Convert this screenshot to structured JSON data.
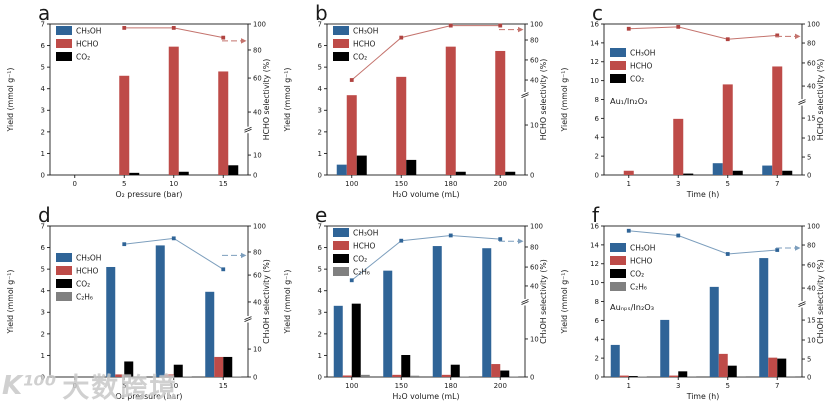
{
  "figure": {
    "watermark": {
      "logo": "K¹⁰⁰",
      "text": "大数跨境"
    }
  },
  "colors": {
    "blue": "#2F6497",
    "red": "#BE4B48",
    "black": "#000000",
    "gray": "#808080",
    "line_red": "#C4736D",
    "line_red_marker": "#B04340",
    "line_blue": "#7C9EBD",
    "line_blue_marker": "#2F6497",
    "axis": "#1a1a1a"
  },
  "chart_data": [
    {
      "id": "a",
      "letter": "a",
      "type": "bar",
      "xlabel": "O₂ pressure (bar)",
      "ylabel_left": "Yield (mmol g⁻¹)",
      "ylabel_right": "HCHO selectivity (%)",
      "categories": [
        "0",
        "5",
        "10",
        "15"
      ],
      "left_axis": {
        "max": 7,
        "ticks": [
          0,
          1,
          2,
          3,
          4,
          5,
          6,
          7
        ]
      },
      "right_axis": {
        "break_f": 0.3,
        "ticks": [
          {
            "v": 0,
            "f": 0
          },
          {
            "v": 10,
            "f": 0.132
          },
          {
            "v": 40,
            "f": 0.417
          },
          {
            "v": 60,
            "f": 0.642
          },
          {
            "v": 80,
            "f": 0.828
          },
          {
            "v": 100,
            "f": 1
          }
        ]
      },
      "series": [
        {
          "name": "CH₃OH",
          "color": "blue",
          "values": [
            0,
            0,
            0,
            0
          ]
        },
        {
          "name": "HCHO",
          "color": "red",
          "values": [
            0,
            4.6,
            5.95,
            4.8
          ]
        },
        {
          "name": "CO₂",
          "color": "black",
          "values": [
            0,
            0.1,
            0.15,
            0.45
          ]
        }
      ],
      "line": {
        "name": "HCHO selectivity",
        "color": "red",
        "values": [
          null,
          97,
          97,
          89.5
        ],
        "arrow_value": 87
      },
      "legend_dy": 2,
      "annotation": null,
      "ann_y": 0
    },
    {
      "id": "b",
      "letter": "b",
      "type": "bar",
      "xlabel": "H₂O volume (mL)",
      "ylabel_left": "Yield (mmol g⁻¹)",
      "ylabel_right": "HCHO selectivity (%)",
      "categories": [
        "100",
        "150",
        "180",
        "200"
      ],
      "left_axis": {
        "max": 7,
        "ticks": [
          0,
          1,
          2,
          3,
          4,
          5,
          6,
          7
        ]
      },
      "right_axis": {
        "break_f": 0.53,
        "ticks": [
          {
            "v": 0,
            "f": 0
          },
          {
            "v": 10,
            "f": 0.331
          },
          {
            "v": 40,
            "f": 0.629
          },
          {
            "v": 60,
            "f": 0.762
          },
          {
            "v": 80,
            "f": 0.894
          },
          {
            "v": 100,
            "f": 1
          }
        ]
      },
      "series": [
        {
          "name": "CH₃OH",
          "color": "blue",
          "values": [
            0.48,
            0,
            0,
            0
          ]
        },
        {
          "name": "HCHO",
          "color": "red",
          "values": [
            3.7,
            4.55,
            5.95,
            5.75
          ]
        },
        {
          "name": "CO₂",
          "color": "black",
          "values": [
            0.9,
            0.7,
            0.15,
            0.15
          ]
        }
      ],
      "line": {
        "name": "HCHO selectivity",
        "color": "red",
        "values": [
          40,
          83,
          98,
          98
        ],
        "arrow_value": 93
      },
      "legend_dy": 2,
      "annotation": null,
      "ann_y": 0
    },
    {
      "id": "c",
      "letter": "c",
      "type": "bar",
      "xlabel": "Time (h)",
      "ylabel_left": "Yield (mmol g⁻¹)",
      "ylabel_right": "HCHO selectivity (%)",
      "categories": [
        "1",
        "3",
        "5",
        "7"
      ],
      "left_axis": {
        "max": 16,
        "ticks": [
          0,
          2,
          4,
          6,
          8,
          10,
          12,
          14,
          16
        ]
      },
      "right_axis": {
        "break_f": 0.483,
        "ticks": [
          {
            "v": 0,
            "f": 0
          },
          {
            "v": 5,
            "f": 0.119
          },
          {
            "v": 10,
            "f": 0.245
          },
          {
            "v": 15,
            "f": 0.377
          },
          {
            "v": 40,
            "f": 0.589
          },
          {
            "v": 60,
            "f": 0.742
          },
          {
            "v": 80,
            "f": 0.874
          },
          {
            "v": 100,
            "f": 1
          }
        ]
      },
      "series": [
        {
          "name": "CH₃OH",
          "color": "blue",
          "values": [
            0,
            0,
            1.25,
            1.0
          ]
        },
        {
          "name": "HCHO",
          "color": "red",
          "values": [
            0.45,
            5.95,
            9.6,
            11.5
          ]
        },
        {
          "name": "CO₂",
          "color": "black",
          "values": [
            0,
            0.15,
            0.45,
            0.45
          ]
        }
      ],
      "line": {
        "name": "HCHO selectivity",
        "color": "red",
        "values": [
          95,
          97,
          84,
          88
        ],
        "arrow_value": 87
      },
      "legend_dy": 24,
      "annotation": "Au₁/In₂O₃",
      "ann_y": 104
    },
    {
      "id": "d",
      "letter": "d",
      "type": "bar",
      "xlabel": "O₂ pressure (bar)",
      "ylabel_left": "Yield (mmol g⁻¹)",
      "ylabel_right": "CH₃OH selectivity (%)",
      "categories": [
        "0",
        "5",
        "10",
        "15"
      ],
      "left_axis": {
        "max": 7,
        "ticks": [
          0,
          1,
          2,
          3,
          4,
          5,
          6,
          7
        ]
      },
      "right_axis": {
        "break_f": 0.384,
        "ticks": [
          {
            "v": 0,
            "f": 0
          },
          {
            "v": 10,
            "f": 0.185
          },
          {
            "v": 40,
            "f": 0.497
          },
          {
            "v": 60,
            "f": 0.675
          },
          {
            "v": 80,
            "f": 0.828
          },
          {
            "v": 100,
            "f": 1
          }
        ]
      },
      "series": [
        {
          "name": "CH₃OH",
          "color": "blue",
          "values": [
            0,
            5.1,
            6.1,
            3.95
          ]
        },
        {
          "name": "HCHO",
          "color": "red",
          "values": [
            0,
            0.12,
            0.12,
            0.93
          ]
        },
        {
          "name": "CO₂",
          "color": "black",
          "values": [
            0,
            0.72,
            0.57,
            0.93
          ]
        },
        {
          "name": "C₂H₆",
          "color": "gray",
          "values": [
            0,
            0.03,
            0.02,
            0.02
          ]
        }
      ],
      "line": {
        "name": "CH₃OH selectivity",
        "color": "blue",
        "values": [
          null,
          86,
          90.5,
          65
        ],
        "arrow_value": 77
      },
      "legend_dy": 27,
      "annotation": null,
      "ann_y": 0
    },
    {
      "id": "e",
      "letter": "e",
      "type": "bar",
      "xlabel": "H₂O volume (mL)",
      "ylabel_left": "Yield (mmol g⁻¹)",
      "ylabel_right": "CH₃OH selectivity (%)",
      "categories": [
        "100",
        "150",
        "180",
        "200"
      ],
      "left_axis": {
        "max": 7,
        "ticks": [
          0,
          1,
          2,
          3,
          4,
          5,
          6,
          7
        ]
      },
      "right_axis": {
        "break_f": 0.497,
        "ticks": [
          {
            "v": 0,
            "f": 0
          },
          {
            "v": 10,
            "f": 0.252
          },
          {
            "v": 40,
            "f": 0.603
          },
          {
            "v": 60,
            "f": 0.728
          },
          {
            "v": 80,
            "f": 0.861
          },
          {
            "v": 100,
            "f": 1
          }
        ]
      },
      "series": [
        {
          "name": "CH₃OH",
          "color": "blue",
          "values": [
            3.3,
            4.93,
            6.07,
            5.97
          ]
        },
        {
          "name": "HCHO",
          "color": "red",
          "values": [
            0.07,
            0.1,
            0.1,
            0.6
          ]
        },
        {
          "name": "CO₂",
          "color": "black",
          "values": [
            3.4,
            1.02,
            0.57,
            0.3
          ]
        },
        {
          "name": "C₂H₆",
          "color": "gray",
          "values": [
            0.1,
            0.06,
            0.02,
            0.02
          ]
        }
      ],
      "line": {
        "name": "CH₃OH selectivity",
        "color": "blue",
        "values": [
          46,
          86,
          91,
          87.5
        ],
        "arrow_value": 85.5
      },
      "legend_dy": 2,
      "annotation": null,
      "ann_y": 0
    },
    {
      "id": "f",
      "letter": "f",
      "type": "bar",
      "xlabel": "Time (h)",
      "ylabel_left": "Yield (mmol g⁻¹)",
      "ylabel_right": "CH₃OH selectivity (%)",
      "categories": [
        "1",
        "3",
        "5",
        "7"
      ],
      "left_axis": {
        "max": 16,
        "ticks": [
          0,
          2,
          4,
          6,
          8,
          10,
          12,
          14,
          16
        ]
      },
      "right_axis": {
        "break_f": 0.483,
        "ticks": [
          {
            "v": 0,
            "f": 0
          },
          {
            "v": 5,
            "f": 0.119
          },
          {
            "v": 10,
            "f": 0.245
          },
          {
            "v": 15,
            "f": 0.377
          },
          {
            "v": 40,
            "f": 0.589
          },
          {
            "v": 60,
            "f": 0.742
          },
          {
            "v": 80,
            "f": 0.874
          },
          {
            "v": 100,
            "f": 1
          }
        ]
      },
      "series": [
        {
          "name": "CH₃OH",
          "color": "blue",
          "values": [
            3.4,
            6.05,
            9.55,
            12.6
          ]
        },
        {
          "name": "HCHO",
          "color": "red",
          "values": [
            0.15,
            0.15,
            2.45,
            2.05
          ]
        },
        {
          "name": "CO₂",
          "color": "black",
          "values": [
            0.1,
            0.6,
            1.2,
            1.95
          ]
        },
        {
          "name": "C₂H₆",
          "color": "gray",
          "values": [
            0.05,
            0.03,
            0.02,
            0.02
          ]
        }
      ],
      "line": {
        "name": "CH₃OH selectivity",
        "color": "blue",
        "values": [
          95,
          90,
          71,
          75
        ],
        "arrow_value": 77
      },
      "legend_dy": 17,
      "annotation": "Auₙₚₛ/In₂O₃",
      "ann_y": 108
    }
  ]
}
